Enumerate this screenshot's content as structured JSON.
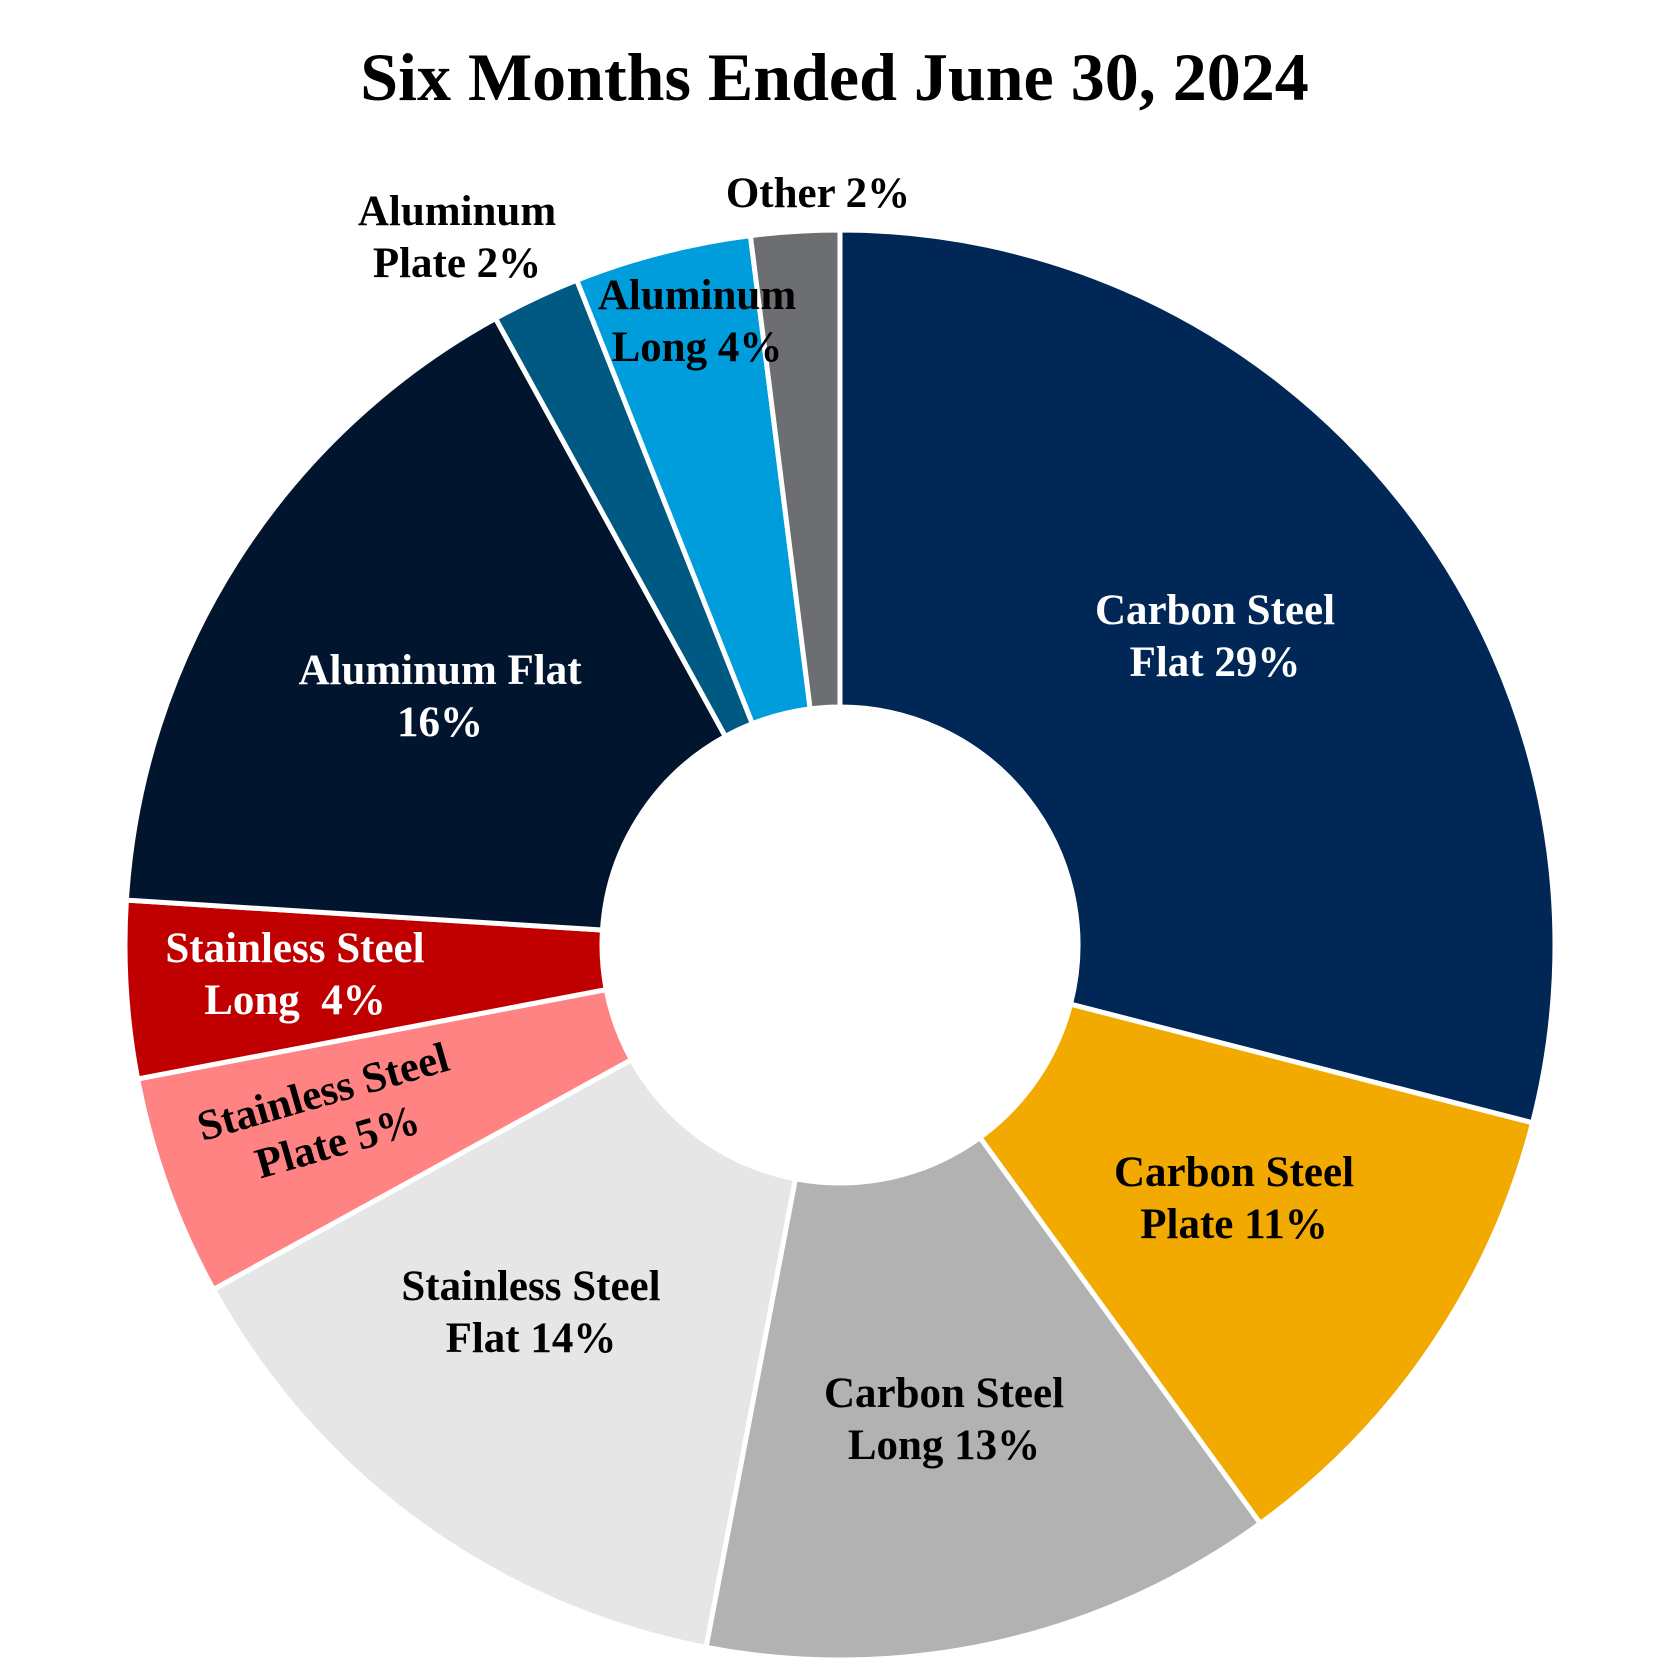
{
  "chart_data": {
    "type": "pie",
    "style": "donut",
    "title": "Six Months Ended June 30, 2024",
    "start": "top",
    "direction": "clockwise",
    "slices": [
      {
        "label_lines": [
          "Carbon Steel",
          "Flat 29%"
        ],
        "value": 29,
        "color": "#002755",
        "text_color": "#ffffff"
      },
      {
        "label_lines": [
          "Carbon Steel",
          "Plate 11%"
        ],
        "value": 11,
        "color": "#f2a900",
        "text_color": "#000000"
      },
      {
        "label_lines": [
          "Carbon Steel",
          "Long 13%"
        ],
        "value": 13,
        "color": "#b1b2b1",
        "text_color": "#000000"
      },
      {
        "label_lines": [
          "Stainless Steel",
          "Flat 14%"
        ],
        "value": 14,
        "color": "#e6e6e6",
        "text_color": "#000000"
      },
      {
        "label_lines": [
          "Stainless Steel",
          "Plate 5%"
        ],
        "value": 5,
        "color": "#ff8383",
        "text_color": "#000000"
      },
      {
        "label_lines": [
          "Stainless Steel",
          "Long  4%"
        ],
        "value": 4,
        "color": "#c00000",
        "text_color": "#ffffff"
      },
      {
        "label_lines": [
          "Aluminum Flat",
          "16%"
        ],
        "value": 16,
        "color": "#02152e",
        "text_color": "#ffffff"
      },
      {
        "label_lines": [
          "Aluminum",
          "Plate 2%"
        ],
        "value": 2,
        "color": "#005982",
        "text_color": "#000000"
      },
      {
        "label_lines": [
          "Aluminum",
          "Long 4%"
        ],
        "value": 4,
        "color": "#009ddc",
        "text_color": "#000000"
      },
      {
        "label_lines": [
          "Other 2%"
        ],
        "value": 2,
        "color": "#6d6e71",
        "text_color": "#000000"
      }
    ]
  }
}
